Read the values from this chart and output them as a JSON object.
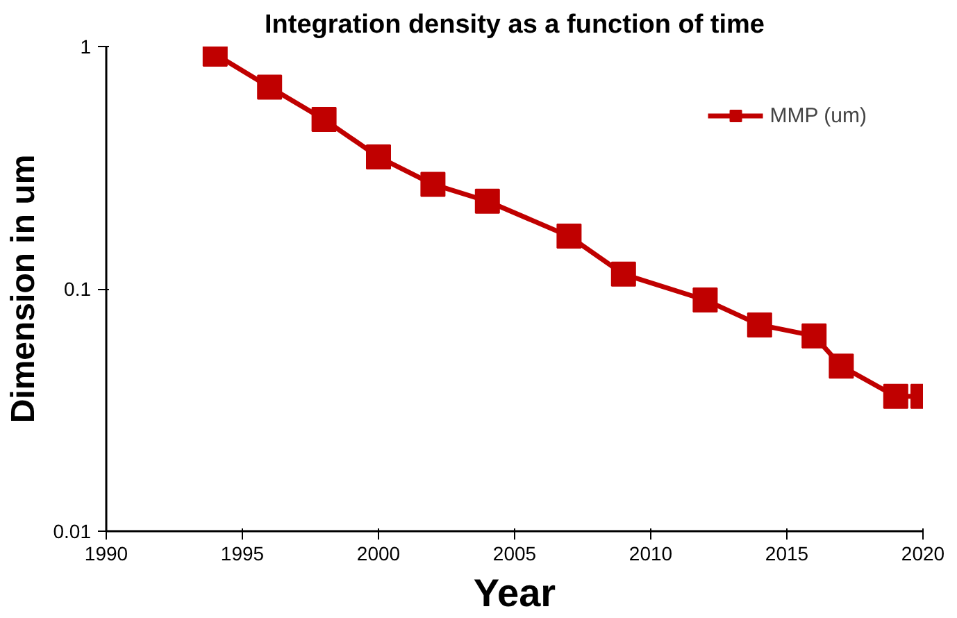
{
  "chart_data": {
    "type": "line",
    "title": "Integration density as a function of time",
    "xlabel": "Year",
    "ylabel": "Dimension in um",
    "x": [
      1994,
      1996,
      1998,
      2000,
      2002,
      2004,
      2007,
      2009,
      2012,
      2014,
      2016,
      2017,
      2019,
      2020
    ],
    "series": [
      {
        "name": "MMP (um)",
        "color": "#c00000",
        "values": [
          0.93,
          0.68,
          0.5,
          0.35,
          0.27,
          0.23,
          0.165,
          0.115,
          0.09,
          0.071,
          0.064,
          0.048,
          0.036,
          0.036
        ]
      }
    ],
    "xlim": [
      1990,
      2020
    ],
    "xticks": [
      1990,
      1995,
      2000,
      2005,
      2010,
      2015,
      2020
    ],
    "ylim": [
      0.01,
      1
    ],
    "yticks": [
      0.01,
      0.1,
      1
    ],
    "log": "y",
    "grid": false,
    "legend": "top right",
    "marker": "square",
    "line_style": "solid"
  }
}
